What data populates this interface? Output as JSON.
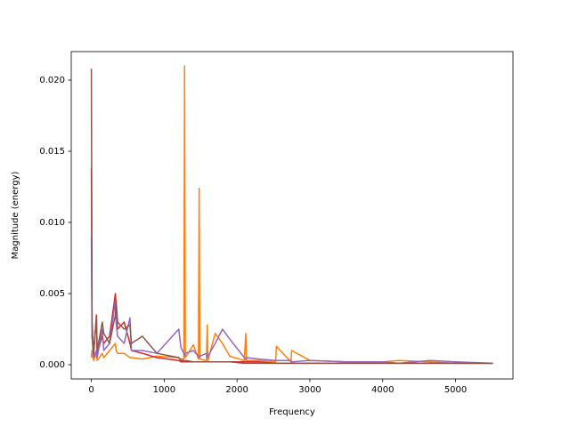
{
  "chart_data": {
    "type": "line",
    "xlabel": "Frequency",
    "ylabel": "Magnitude (energy)",
    "xlim": [
      -276,
      5788
    ],
    "ylim": [
      -0.001,
      0.022
    ],
    "xticks": [
      0,
      1000,
      2000,
      3000,
      4000,
      5000
    ],
    "yticks": [
      {
        "value": 0,
        "label": "0.000"
      },
      {
        "value": 0.005,
        "label": "0.005"
      },
      {
        "value": 0.01,
        "label": "0.010"
      },
      {
        "value": 0.015,
        "label": "0.015"
      },
      {
        "value": 0.02,
        "label": "0.020"
      }
    ],
    "grid": false,
    "x": [
      0,
      10,
      30,
      70,
      80,
      150,
      170,
      250,
      330,
      340,
      360,
      450,
      530,
      550,
      700,
      900,
      1200,
      1230,
      1270,
      1280,
      1290,
      1400,
      1470,
      1480,
      1490,
      1580,
      1590,
      1600,
      1700,
      1800,
      1900,
      2100,
      2120,
      2130,
      2300,
      2530,
      2540,
      2740,
      2750,
      3000,
      3500,
      4000,
      4220,
      4650,
      5000,
      5512
    ],
    "series": [
      {
        "color": "#ff7f0e",
        "values": [
          0.0005,
          0.001,
          0.0003,
          0.0008,
          0.0003,
          0.0008,
          0.0005,
          0.001,
          0.0015,
          0.001,
          0.0008,
          0.0008,
          0.0005,
          0.0005,
          0.0004,
          0.0006,
          0.0005,
          0.0004,
          0.0004,
          0.021,
          0.0005,
          0.0014,
          0.0004,
          0.0124,
          0.0004,
          0.0003,
          0.0028,
          0.0003,
          0.0022,
          0.0015,
          0.0006,
          0.0003,
          0.0022,
          0.0003,
          0.0003,
          0.0002,
          0.0013,
          0.0002,
          0.001,
          0.0003,
          0.0002,
          0.0002,
          0.0003,
          0.0002,
          0.0001,
          0.0001
        ]
      },
      {
        "color": "#d62728",
        "values": [
          0.0138,
          0.002,
          0.0006,
          0.0035,
          0.0008,
          0.002,
          0.0015,
          0.002,
          0.005,
          0.004,
          0.0025,
          0.003,
          0.0015,
          0.001,
          0.0008,
          0.0005,
          0.0003,
          0.0002,
          0.0002,
          0.0002,
          0.0002,
          0.0002,
          0.0002,
          0.0002,
          0.0002,
          0.0002,
          0.0002,
          0.0002,
          0.0002,
          0.0002,
          0.0002,
          0.0002,
          0.0002,
          0.0002,
          0.0002,
          0.0001,
          0.0001,
          0.0001,
          0.0001,
          0.0001,
          0.0001,
          0.0001,
          0.0001,
          0.0001,
          0.0001,
          0.0001
        ]
      },
      {
        "color": "#9467bd",
        "values": [
          0.009,
          0.002,
          0.0005,
          0.001,
          0.0005,
          0.0025,
          0.001,
          0.0015,
          0.0045,
          0.003,
          0.002,
          0.0015,
          0.0033,
          0.001,
          0.001,
          0.0008,
          0.0025,
          0.0012,
          0.0008,
          0.0006,
          0.0008,
          0.001,
          0.0006,
          0.0005,
          0.0006,
          0.0008,
          0.0005,
          0.0006,
          0.0015,
          0.0025,
          0.0018,
          0.0005,
          0.0004,
          0.0005,
          0.0004,
          0.0003,
          0.0003,
          0.0003,
          0.0002,
          0.0003,
          0.0002,
          0.0002,
          0.0001,
          0.0003,
          0.0002,
          0.0001
        ]
      },
      {
        "color": "#8c564b",
        "values": [
          0.0208,
          0.003,
          0.0008,
          0.0033,
          0.001,
          0.003,
          0.0022,
          0.0015,
          0.0035,
          0.0045,
          0.003,
          0.0025,
          0.0028,
          0.0015,
          0.002,
          0.0008,
          0.0005,
          0.0003,
          0.0003,
          0.0002,
          0.0003,
          0.0002,
          0.0002,
          0.0002,
          0.0002,
          0.0002,
          0.0002,
          0.0002,
          0.0002,
          0.0002,
          0.0002,
          0.0001,
          0.0001,
          0.0001,
          0.0001,
          0.0001,
          0.0001,
          0.0001,
          0.0001,
          0.0001,
          0.0001,
          0.0001,
          0.0001,
          0.0001,
          0.0001,
          0.0001
        ]
      }
    ]
  }
}
